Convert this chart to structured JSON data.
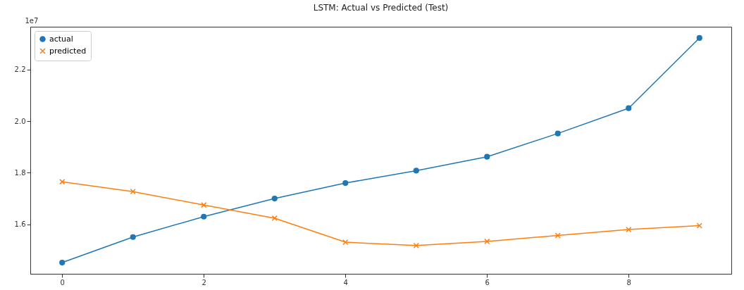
{
  "chart_data": {
    "type": "line",
    "title": "LSTM: Actual vs Predicted (Test)",
    "x": [
      0,
      1,
      2,
      3,
      4,
      5,
      6,
      7,
      8,
      9
    ],
    "series": [
      {
        "name": "actual",
        "color": "#1f77b4",
        "marker": "circle",
        "values": [
          1.452,
          1.551,
          1.63,
          1.7,
          1.76,
          1.808,
          1.862,
          1.952,
          2.05,
          2.322
        ]
      },
      {
        "name": "predicted",
        "color": "#ff7f0e",
        "marker": "cross",
        "values": [
          1.765,
          1.727,
          1.675,
          1.624,
          1.531,
          1.518,
          1.534,
          1.557,
          1.58,
          1.595
        ]
      }
    ],
    "xlim": [
      -0.45,
      9.45
    ],
    "xticks": [
      0,
      2,
      4,
      6,
      8
    ],
    "ylim": [
      1.4085,
      2.3655
    ],
    "yticks": [
      1.6,
      1.8,
      {
        "value": 2.0,
        "label": "2.0"
      },
      2.2
    ],
    "annotations": [
      "1e7"
    ],
    "grid": false,
    "legend": "top left",
    "line_style": "solid"
  }
}
